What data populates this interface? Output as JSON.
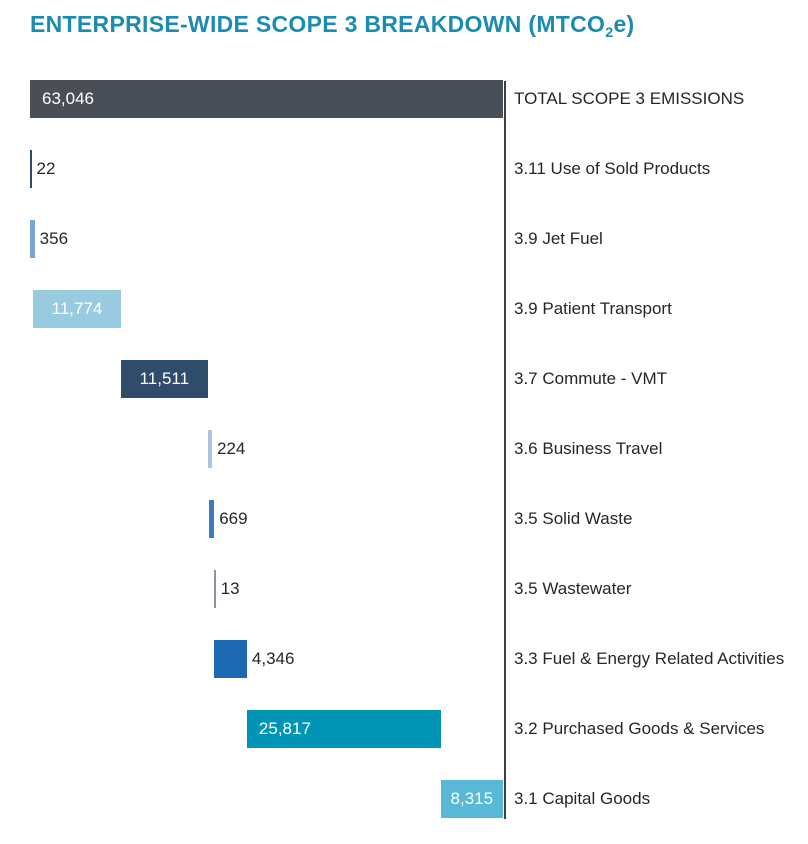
{
  "title": {
    "prefix": "ENTERPRISE-WIDE SCOPE 3 BREAKDOWN (MTCO",
    "subscript": "2",
    "suffix": "e)",
    "color": "#1b8cb0"
  },
  "chart_data": {
    "type": "bar",
    "subtype": "horizontal-waterfall",
    "title": "ENTERPRISE-WIDE SCOPE 3 BREAKDOWN (MTCO2e)",
    "unit": "MTCO2e",
    "axis": {
      "min": 0,
      "max": 63046,
      "gridlines": false,
      "legend": "none"
    },
    "axis_line_color": "#3c3f45",
    "total_row": {
      "label": "TOTAL SCOPE 3 EMISSIONS",
      "value": 63046,
      "display": "63,046",
      "color": "#4a4f57",
      "value_label": "inside-left"
    },
    "items": [
      {
        "label": "3.11 Use of Sold Products",
        "value": 22,
        "display": "22",
        "color": "#2f4d6b",
        "value_label": "outside"
      },
      {
        "label": "3.9 Jet Fuel",
        "value": 356,
        "display": "356",
        "color": "#7ba4d6",
        "value_label": "outside"
      },
      {
        "label": "3.9 Patient Transport",
        "value": 11774,
        "display": "11,774",
        "color": "#98cbdf",
        "value_label": "inside-center"
      },
      {
        "label": "3.7 Commute - VMT",
        "value": 11511,
        "display": "11,511",
        "color": "#2f4d6b",
        "value_label": "inside-center"
      },
      {
        "label": "3.6 Business Travel",
        "value": 224,
        "display": "224",
        "color": "#a9c5e2",
        "value_label": "outside"
      },
      {
        "label": "3.5 Solid Waste",
        "value": 669,
        "display": "669",
        "color": "#3d7cc1",
        "value_label": "outside"
      },
      {
        "label": "3.5 Wastewater",
        "value": 13,
        "display": "13",
        "color": "#8a94a0",
        "value_label": "outside"
      },
      {
        "label": "3.3 Fuel & Energy Related Activities",
        "value": 4346,
        "display": "4,346",
        "color": "#1c69b2",
        "value_label": "outside"
      },
      {
        "label": "3.2 Purchased Goods & Services",
        "value": 25817,
        "display": "25,817",
        "color": "#0094b6",
        "value_label": "inside-left"
      },
      {
        "label": "3.1 Capital Goods",
        "value": 8315,
        "display": "8,315",
        "color": "#58b8d6",
        "value_label": "inside-center"
      }
    ]
  }
}
